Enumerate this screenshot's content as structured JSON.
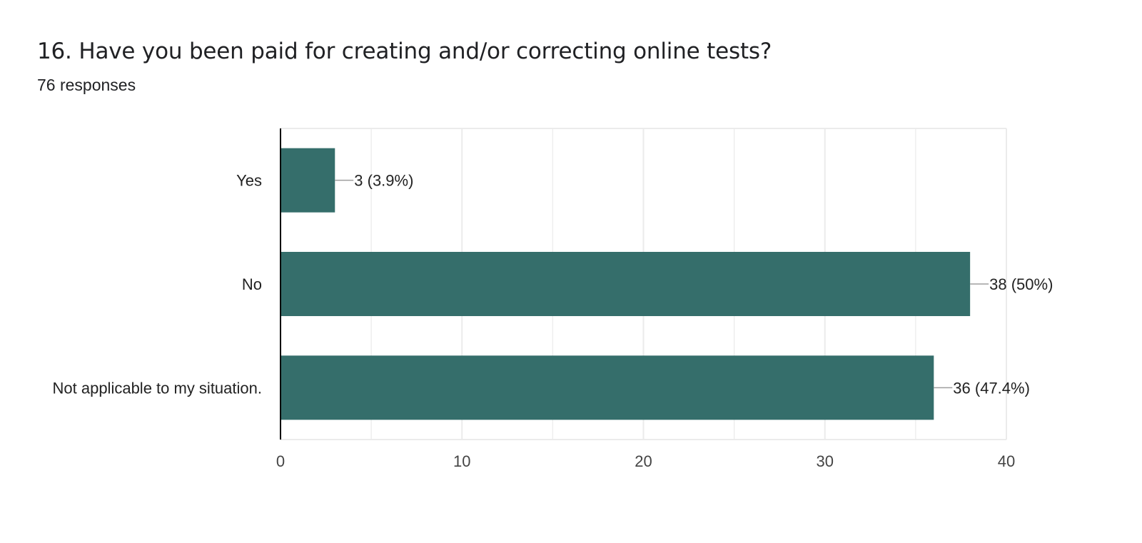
{
  "question": {
    "title": "16. Have you been paid for creating and/or correcting online tests?",
    "responses": "76 responses"
  },
  "colors": {
    "bar": "#356e6b",
    "grid": "#ebebeb",
    "axis": "#000000",
    "text": "#222222",
    "connector": "#9e9e9e"
  },
  "chart_data": {
    "type": "bar",
    "orientation": "horizontal",
    "categories": [
      "Yes",
      "No",
      "Not applicable to my situation."
    ],
    "values": [
      3,
      38,
      36
    ],
    "data_labels": [
      "3 (3.9%)",
      "38 (50%)",
      "36 (47.4%)"
    ],
    "xlim": [
      0,
      40
    ],
    "x_ticks": [
      0,
      10,
      20,
      30,
      40
    ],
    "grid": true,
    "legend": "none"
  }
}
